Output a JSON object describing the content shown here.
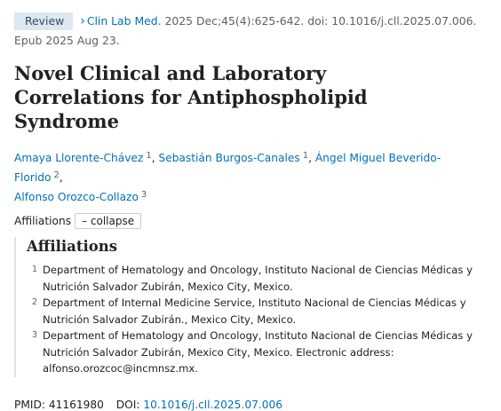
{
  "citation": {
    "badge": "Review",
    "chevron_icon": "chevron-right-icon",
    "journal": "Clin Lab Med.",
    "details": " 2025 Dec;45(4):625-642. doi: 10.1016/j.cll.2025.07.006.",
    "epub": "Epub 2025 Aug 23."
  },
  "article": {
    "title": "Novel Clinical and Laboratory Correlations for Antiphospholipid Syndrome"
  },
  "authors": [
    {
      "name": "Amaya Llorente-Chávez",
      "aff": "1"
    },
    {
      "name": "Sebastián Burgos-Canales",
      "aff": "1"
    },
    {
      "name": "Ángel Miguel Beverido-Florido",
      "aff": "2"
    },
    {
      "name": "Alfonso Orozco-Collazo",
      "aff": "3"
    }
  ],
  "affiliations_toggle": {
    "label": "Affiliations",
    "button": "– collapse"
  },
  "affiliations": {
    "heading": "Affiliations",
    "items": [
      {
        "num": "1",
        "text": "Department of Hematology and Oncology, Instituto Nacional de Ciencias Médicas y Nutrición Salvador Zubirán, Mexico City, Mexico."
      },
      {
        "num": "2",
        "text": "Department of Internal Medicine Service, Instituto Nacional de Ciencias Médicas y Nutrición Salvador Zubirán., Mexico City, Mexico."
      },
      {
        "num": "3",
        "text": "Department of Hematology and Oncology, Instituto Nacional de Ciencias Médicas y Nutrición Salvador Zubirán, Mexico City, Mexico. Electronic address: alfonso.orozcoc@incmnsz.mx."
      }
    ]
  },
  "identifiers": {
    "pmid_label": "PMID:",
    "pmid": "41161980",
    "doi_label": "DOI:",
    "doi": "10.1016/j.cll.2025.07.006"
  },
  "colors": {
    "link": "#0071bc",
    "badge_bg": "#dce7f2",
    "muted": "#5b616b"
  }
}
